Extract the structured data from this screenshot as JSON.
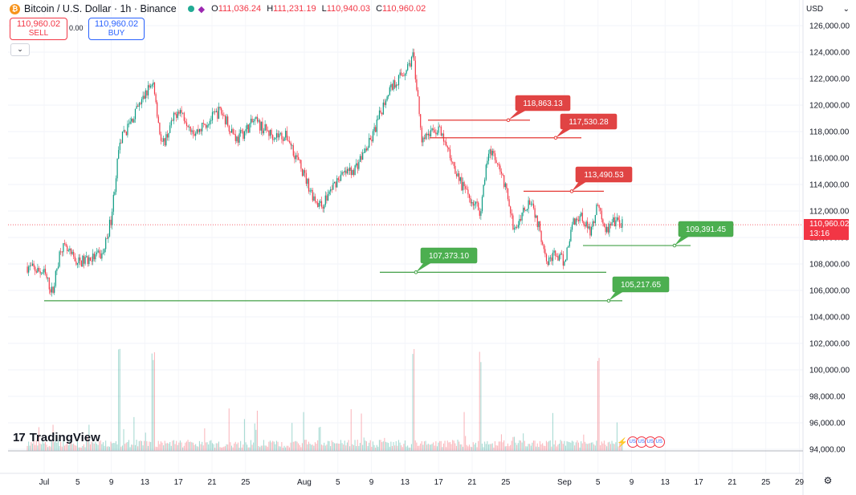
{
  "header": {
    "icon": "bitcoin-icon",
    "title": "Bitcoin / U.S. Dollar · 1h · Binance",
    "ohlc": {
      "o_label": "O",
      "o": "111,036.24",
      "h_label": "H",
      "h": "111,231.19",
      "l_label": "L",
      "l": "110,940.03",
      "c_label": "C",
      "c": "110,960.02"
    }
  },
  "trade": {
    "sell_price": "110,960.02",
    "sell_label": "SELL",
    "spread": "0.00",
    "buy_price": "110,960.02",
    "buy_label": "BUY"
  },
  "currency": "USD",
  "last_price": "110,960.02",
  "countdown": "13:16",
  "logo_text": "TradingView",
  "colors": {
    "up": "#089981",
    "down": "#f23645",
    "support": "#43a047",
    "resistance": "#e53935"
  },
  "chart_data": {
    "type": "candlestick",
    "series": [
      {
        "name": "BTCUSD 1h"
      }
    ],
    "y_ticks": [
      94000,
      96000,
      98000,
      100000,
      102000,
      104000,
      106000,
      108000,
      110000,
      112000,
      114000,
      116000,
      118000,
      120000,
      122000,
      124000,
      126000
    ],
    "y_tick_labels": [
      "94,000.00",
      "96,000.00",
      "98,000.00",
      "100,000.00",
      "102,000.00",
      "104,000.00",
      "106,000.00",
      "108,000.00",
      "110,000.00",
      "112,000.00",
      "114,000.00",
      "116,000.00",
      "118,000.00",
      "120,000.00",
      "122,000.00",
      "124,000.00",
      "126,000.00"
    ],
    "x_tick_labels": [
      "Jul",
      "5",
      "9",
      "13",
      "17",
      "21",
      "25",
      "Aug",
      "5",
      "9",
      "13",
      "17",
      "21",
      "25",
      "Sep",
      "5",
      "9",
      "13",
      "17",
      "21",
      "25",
      "29"
    ],
    "price_path": [
      [
        "Jun 29",
        107800
      ],
      [
        "Jul 1",
        107300
      ],
      [
        "Jul 2",
        105800
      ],
      [
        "Jul 3",
        109400
      ],
      [
        "Jul 5",
        108100
      ],
      [
        "Jul 8",
        108700
      ],
      [
        "Jul 9",
        111500
      ],
      [
        "Jul 10",
        117200
      ],
      [
        "Jul 14",
        121900
      ],
      [
        "Jul 15",
        116800
      ],
      [
        "Jul 17",
        119800
      ],
      [
        "Jul 19",
        117900
      ],
      [
        "Jul 22",
        119600
      ],
      [
        "Jul 24",
        117400
      ],
      [
        "Jul 26",
        118800
      ],
      [
        "Jul 28",
        117800
      ],
      [
        "Jul 30",
        117600
      ],
      [
        "Aug 2",
        113200
      ],
      [
        "Aug 3",
        112300
      ],
      [
        "Aug 5",
        114500
      ],
      [
        "Aug 7",
        115200
      ],
      [
        "Aug 9",
        117400
      ],
      [
        "Aug 11",
        121100
      ],
      [
        "Aug 13",
        122600
      ],
      [
        "Aug 14",
        123700
      ],
      [
        "Aug 15",
        117600
      ],
      [
        "Aug 17",
        118200
      ],
      [
        "Aug 19",
        115200
      ],
      [
        "Aug 20",
        113600
      ],
      [
        "Aug 22",
        112000
      ],
      [
        "Aug 23",
        116900
      ],
      [
        "Aug 25",
        113800
      ],
      [
        "Aug 26",
        110300
      ],
      [
        "Aug 27",
        112000
      ],
      [
        "Aug 28",
        113000
      ],
      [
        "Aug 30",
        108300
      ],
      [
        "Aug 31",
        108700
      ],
      [
        "Sep 1",
        108100
      ],
      [
        "Sep 2",
        111200
      ],
      [
        "Sep 3",
        111700
      ],
      [
        "Sep 4",
        110400
      ],
      [
        "Sep 5",
        112500
      ],
      [
        "Sep 6",
        110500
      ],
      [
        "Sep 7",
        111200
      ],
      [
        "Sep 8",
        110960
      ]
    ],
    "volume_spikes": [
      "Jul 10",
      "Jul 14",
      "Aug 14",
      "Aug 22",
      "Sep 5"
    ],
    "levels": [
      {
        "kind": "resistance",
        "label": "118,863.13",
        "value": 118863.13
      },
      {
        "kind": "resistance",
        "label": "117,530.28",
        "value": 117530.28
      },
      {
        "kind": "resistance",
        "label": "113,490.53",
        "value": 113490.53
      },
      {
        "kind": "support",
        "label": "109,391.45",
        "value": 109391.45
      },
      {
        "kind": "support",
        "label": "107,373.10",
        "value": 107373.1
      },
      {
        "kind": "support",
        "label": "105,217.65",
        "value": 105217.65
      }
    ]
  },
  "events": {
    "flash_icon": "flash-icon",
    "flags": [
      "us-flag-icon",
      "us-flag-icon",
      "us-flag-icon",
      "us-flag-icon"
    ]
  }
}
